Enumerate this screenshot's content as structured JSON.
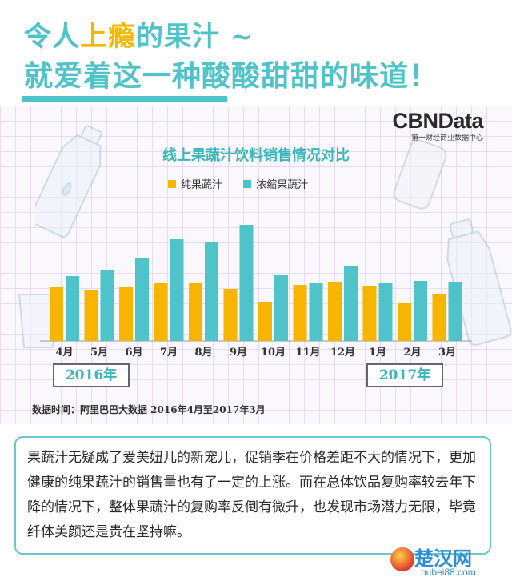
{
  "headline": {
    "line1_pre": "令人",
    "line1_hl": "上瘾",
    "line1_post": "的果汁 ~",
    "line2": "就爱着这一种酸酸甜甜的味道！"
  },
  "brand": {
    "logo": "CBNData",
    "sub": "第一财经商业数据中心"
  },
  "years": {
    "start": "2016年",
    "end": "2017年"
  },
  "source": "数据时间：阿里巴巴大数据  2016年4月至2017年3月",
  "summary": "果蔬汁无疑成了爱美妞儿的新宠儿，促销季在价格差距不大的情况下，更加健康的纯果蔬汁的销售量也有了一定的上涨。而在总体饮品复购率较去年下降的情况下，整体果蔬汁的复购率反倒有微升，也发现市场潜力无限，毕竟纤体美颜还是贵在坚持嘛。",
  "watermark": {
    "cn": "楚汉网",
    "en": "hubei88.com"
  },
  "colors": {
    "pure": "#f7b500",
    "concentrate": "#4ec3c9",
    "accent": "#4ec3c9"
  },
  "chart_data": {
    "type": "bar",
    "title": "线上果蔬汁饮料销售情况对比",
    "categories": [
      "4月",
      "5月",
      "6月",
      "7月",
      "8月",
      "9月",
      "10月",
      "11月",
      "12月",
      "1月",
      "2月",
      "3月"
    ],
    "series": [
      {
        "name": "纯果蔬汁",
        "values": [
          67,
          64,
          67,
          72,
          72,
          65,
          49,
          70,
          73,
          68,
          47,
          59
        ]
      },
      {
        "name": "浓缩果蔬汁",
        "values": [
          81,
          88,
          104,
          127,
          123,
          145,
          82,
          72,
          94,
          72,
          75,
          73
        ]
      }
    ],
    "grid": true,
    "legend": "top-center"
  }
}
